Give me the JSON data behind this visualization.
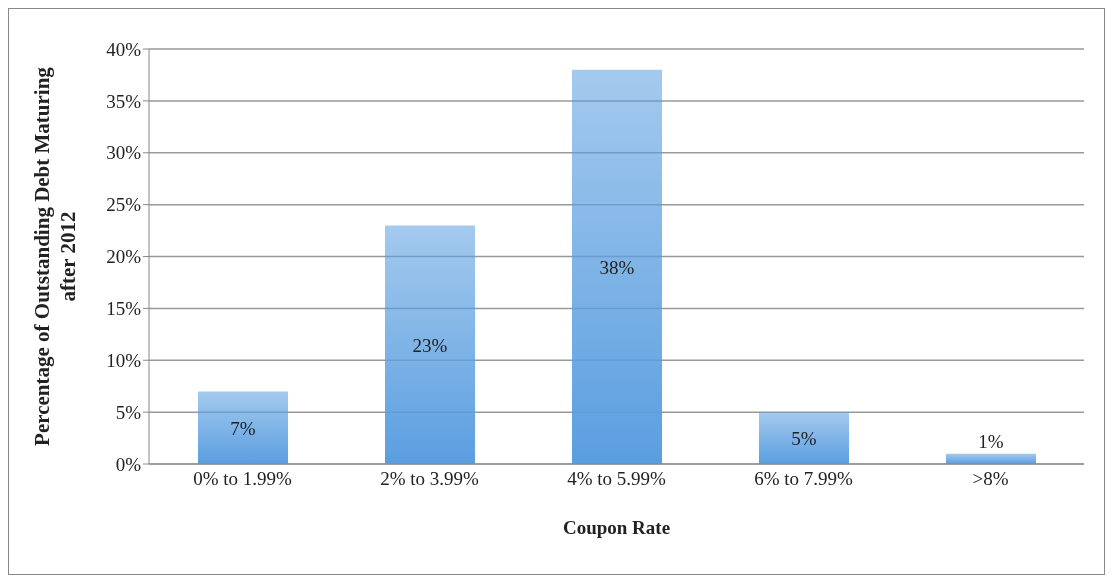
{
  "chart_data": {
    "type": "bar",
    "xlabel": "Coupon Rate",
    "ylabel": "Percentage of Outstanding Debt Maturing after 2012",
    "categories": [
      "0% to 1.99%",
      "2% to 3.99%",
      "4% to 5.99%",
      "6% to 7.99%",
      ">8%"
    ],
    "values": [
      7,
      23,
      38,
      5,
      1
    ],
    "color": "#5a9ee0",
    "value_labels": [
      "7%",
      "23%",
      "38%",
      "5%",
      "1%"
    ],
    "ylim": [
      0,
      40
    ],
    "yticks": [
      {
        "value": 0,
        "label": "0%"
      },
      {
        "value": 5,
        "label": "5%"
      },
      {
        "value": 10,
        "label": "10%"
      },
      {
        "value": 15,
        "label": "15%"
      },
      {
        "value": 20,
        "label": "20%"
      },
      {
        "value": 25,
        "label": "25%"
      },
      {
        "value": 30,
        "label": "30%"
      },
      {
        "value": 35,
        "label": "35%"
      },
      {
        "value": 40,
        "label": "40%"
      }
    ],
    "grid": "y"
  }
}
